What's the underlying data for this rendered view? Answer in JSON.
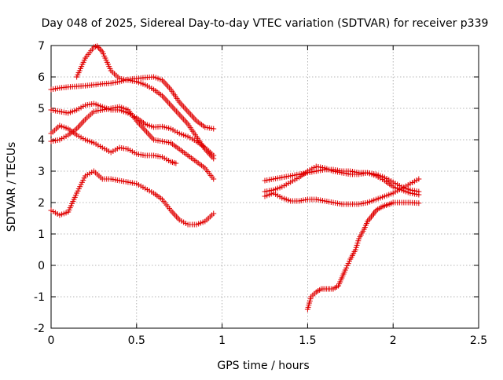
{
  "chart_data": {
    "type": "scatter",
    "title": "Day 048 of 2025, Sidereal Day-to-day VTEC variation (SDTVAR) for receiver p339",
    "xlabel": "GPS time / hours",
    "ylabel": "SDTVAR / TECUs",
    "xlim": [
      0,
      2.5
    ],
    "ylim": [
      -2,
      7
    ],
    "xticks": [
      0,
      0.5,
      1,
      1.5,
      2,
      2.5
    ],
    "xtick_labels": [
      "0",
      "0.5",
      "1",
      "1.5",
      "2",
      "2.5"
    ],
    "yticks": [
      -2,
      -1,
      0,
      1,
      2,
      3,
      4,
      5,
      6,
      7
    ],
    "ytick_labels": [
      "-2",
      "-1",
      "0",
      "1",
      "2",
      "3",
      "4",
      "5",
      "6",
      "7"
    ],
    "grid": true,
    "marker": "plus",
    "color": "#e00000",
    "series": [
      {
        "name": "s1",
        "x": [
          0.0,
          0.05,
          0.1,
          0.15,
          0.2,
          0.25,
          0.3,
          0.35,
          0.4,
          0.45,
          0.5,
          0.55,
          0.6,
          0.65,
          0.7,
          0.75,
          0.8,
          0.85,
          0.9,
          0.95
        ],
        "y": [
          5.6,
          5.65,
          5.68,
          5.7,
          5.72,
          5.75,
          5.78,
          5.8,
          5.85,
          5.92,
          5.95,
          5.98,
          6.0,
          5.9,
          5.6,
          5.2,
          4.9,
          4.6,
          4.4,
          4.35
        ]
      },
      {
        "name": "s2",
        "x": [
          0.15,
          0.2,
          0.25,
          0.27,
          0.3,
          0.35,
          0.4,
          0.45,
          0.5,
          0.55,
          0.6,
          0.65,
          0.7,
          0.75,
          0.8,
          0.85,
          0.9,
          0.95
        ],
        "y": [
          6.0,
          6.6,
          6.95,
          6.98,
          6.8,
          6.2,
          5.95,
          5.9,
          5.85,
          5.75,
          5.6,
          5.4,
          5.1,
          4.8,
          4.5,
          4.1,
          3.7,
          3.4
        ]
      },
      {
        "name": "s3",
        "x": [
          0.0,
          0.05,
          0.1,
          0.15,
          0.2,
          0.25,
          0.3,
          0.35,
          0.4,
          0.45,
          0.5,
          0.55,
          0.6,
          0.65,
          0.7,
          0.75,
          0.8,
          0.85,
          0.9,
          0.95
        ],
        "y": [
          4.95,
          4.9,
          4.85,
          4.95,
          5.1,
          5.15,
          5.05,
          4.95,
          4.95,
          4.85,
          4.7,
          4.5,
          4.4,
          4.42,
          4.35,
          4.2,
          4.1,
          3.95,
          3.75,
          3.5
        ]
      },
      {
        "name": "s4",
        "x": [
          0.0,
          0.05,
          0.1,
          0.15,
          0.2,
          0.25,
          0.3,
          0.35,
          0.4,
          0.45,
          0.5,
          0.55,
          0.6,
          0.65,
          0.7,
          0.75,
          0.8,
          0.85,
          0.9,
          0.95
        ],
        "y": [
          3.95,
          4.0,
          4.15,
          4.35,
          4.65,
          4.9,
          4.95,
          5.0,
          5.05,
          4.95,
          4.6,
          4.3,
          4.0,
          3.95,
          3.9,
          3.7,
          3.5,
          3.3,
          3.1,
          2.75
        ]
      },
      {
        "name": "s5",
        "x": [
          0.0,
          0.05,
          0.1,
          0.15,
          0.2,
          0.25,
          0.3,
          0.35,
          0.4,
          0.45,
          0.5,
          0.55,
          0.6,
          0.65,
          0.7,
          0.73
        ],
        "y": [
          4.2,
          4.45,
          4.35,
          4.15,
          4.0,
          3.9,
          3.75,
          3.6,
          3.75,
          3.7,
          3.55,
          3.5,
          3.5,
          3.45,
          3.3,
          3.25
        ]
      },
      {
        "name": "s6",
        "x": [
          0.0,
          0.05,
          0.1,
          0.15,
          0.2,
          0.25,
          0.3,
          0.35,
          0.4,
          0.45,
          0.5,
          0.55,
          0.6,
          0.65,
          0.7,
          0.75,
          0.8,
          0.85,
          0.9,
          0.95
        ],
        "y": [
          1.75,
          1.6,
          1.7,
          2.3,
          2.85,
          3.0,
          2.75,
          2.75,
          2.7,
          2.65,
          2.6,
          2.45,
          2.3,
          2.1,
          1.75,
          1.45,
          1.3,
          1.3,
          1.4,
          1.65
        ]
      },
      {
        "name": "s7",
        "x": [
          1.25,
          1.3,
          1.35,
          1.4,
          1.45,
          1.5,
          1.55,
          1.6,
          1.65,
          1.7,
          1.75,
          1.8,
          1.85,
          1.9,
          1.95,
          2.0,
          2.05,
          2.1,
          2.15
        ],
        "y": [
          2.7,
          2.75,
          2.8,
          2.85,
          2.9,
          2.95,
          3.0,
          3.05,
          3.05,
          3.0,
          3.0,
          2.95,
          2.95,
          2.85,
          2.7,
          2.5,
          2.4,
          2.3,
          2.25
        ]
      },
      {
        "name": "s8",
        "x": [
          1.25,
          1.3,
          1.35,
          1.4,
          1.45,
          1.5,
          1.55,
          1.6,
          1.65,
          1.7,
          1.75,
          1.8,
          1.85,
          1.9,
          1.95,
          2.0,
          2.05,
          2.1,
          2.15
        ],
        "y": [
          2.35,
          2.4,
          2.5,
          2.65,
          2.8,
          3.0,
          3.15,
          3.1,
          3.0,
          2.95,
          2.9,
          2.9,
          2.95,
          2.9,
          2.8,
          2.65,
          2.5,
          2.4,
          2.35
        ]
      },
      {
        "name": "s9",
        "x": [
          1.25,
          1.3,
          1.35,
          1.4,
          1.45,
          1.5,
          1.55,
          1.6,
          1.65,
          1.7,
          1.75,
          1.8,
          1.85,
          1.9,
          1.95,
          2.0,
          2.05,
          2.1,
          2.15
        ],
        "y": [
          2.2,
          2.3,
          2.15,
          2.05,
          2.05,
          2.1,
          2.1,
          2.05,
          2.0,
          1.95,
          1.95,
          1.95,
          2.0,
          2.1,
          2.2,
          2.3,
          2.45,
          2.6,
          2.75
        ]
      },
      {
        "name": "s10",
        "x": [
          1.5,
          1.52,
          1.55,
          1.58,
          1.6,
          1.63,
          1.65,
          1.68,
          1.7,
          1.72,
          1.75,
          1.78,
          1.8,
          1.83,
          1.85,
          1.88,
          1.9,
          1.93,
          1.95,
          1.98,
          2.0,
          2.05,
          2.1,
          2.15
        ],
        "y": [
          -1.4,
          -1.0,
          -0.85,
          -0.75,
          -0.75,
          -0.75,
          -0.75,
          -0.65,
          -0.4,
          -0.15,
          0.2,
          0.5,
          0.85,
          1.15,
          1.4,
          1.6,
          1.75,
          1.85,
          1.9,
          1.95,
          2.0,
          2.0,
          2.0,
          1.98
        ]
      }
    ]
  }
}
